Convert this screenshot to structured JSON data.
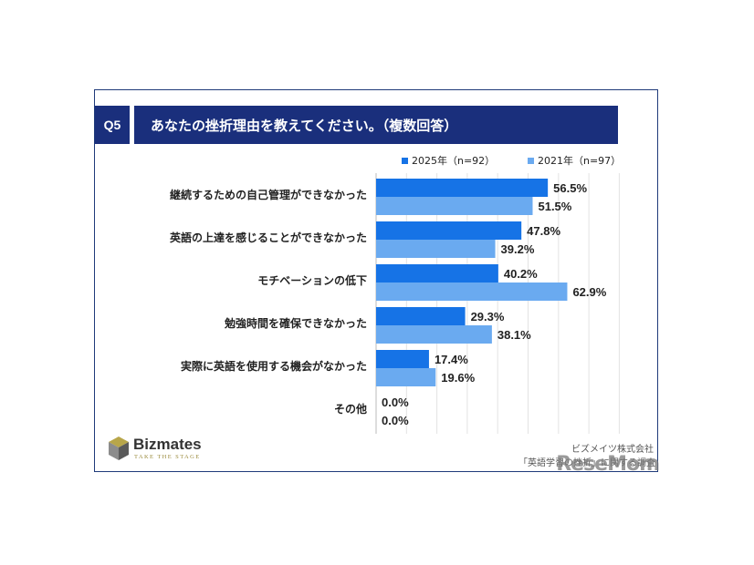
{
  "header": {
    "q_label": "Q5",
    "question": "あなたの挫折理由を教えてください。（複数回答）"
  },
  "colors": {
    "navy": "#1a2f7c",
    "series_2025": "#1673e6",
    "series_2021": "#6aaaf0"
  },
  "chart_data": {
    "type": "bar",
    "orientation": "horizontal",
    "categories": [
      "継続するための自己管理ができなかった",
      "英語の上達を感じることができなかった",
      "モチベーションの低下",
      "勉強時間を確保できなかった",
      "実際に英語を使用する機会がなかった",
      "その他"
    ],
    "series": [
      {
        "name": "2025年（n=92）",
        "values": [
          56.5,
          47.8,
          40.2,
          29.3,
          17.4,
          0.0
        ],
        "labels": [
          "56.5%",
          "47.8%",
          "40.2%",
          "29.3%",
          "17.4%",
          "0.0%"
        ]
      },
      {
        "name": "2021年（n=97）",
        "values": [
          51.5,
          39.2,
          62.9,
          38.1,
          19.6,
          0.0
        ],
        "labels": [
          "51.5%",
          "39.2%",
          "62.9%",
          "38.1%",
          "19.6%",
          "0.0%"
        ]
      }
    ],
    "xlim": [
      0,
      80
    ],
    "grid": true,
    "legend": "top-right"
  },
  "logo": {
    "name": "Bizmates",
    "tagline": "TAKE THE STAGE"
  },
  "source": {
    "line1": "ビズメイツ株式会社",
    "line2": "「英語学習の挫折」に関する調査"
  },
  "watermark": "ReseMom"
}
